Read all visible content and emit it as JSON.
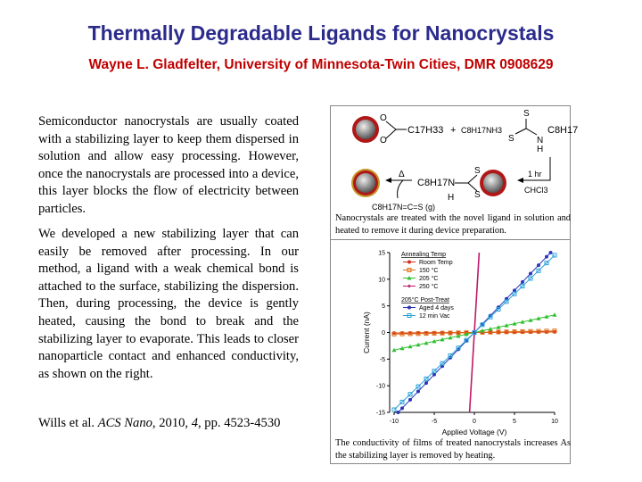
{
  "title": "Thermally Degradable Ligands for Nanocrystals",
  "subtitle": "Wayne L. Gladfelter, University of Minnesota-Twin Cities, DMR 0908629",
  "paragraphs": [
    "Semiconductor nanocrystals are usually coated with a stabilizing layer to keep them dispersed in solution and allow easy processing. However, once the nanocrystals are processed into a device, this layer blocks the flow of electricity between particles.",
    "We developed a new stabilizing layer that can easily be removed after processing. In our method, a ligand with a weak chemical bond is attached to the surface, stabilizing the dispersion. Then, during processing, the device is gently heated, causing the bond to break and the stabilizing layer to evaporate. This leads to closer nanoparticle contact and enhanced conductivity, as shown on the right."
  ],
  "citation": {
    "authors": "Wills et al. ",
    "journal": "ACS Nano",
    "year": ", 2010, ",
    "volume": "4",
    "pages": ", pp. 4523-4530"
  },
  "scheme": {
    "oleate": "C17H33",
    "plus": "+",
    "ammonium": "C8H17NH3",
    "dtc_r": "C8H17",
    "atom_S": "S",
    "atom_O": "O",
    "atom_N": "N",
    "atom_H": "H",
    "time": "1 hr",
    "solvent": "CHCl3",
    "heat": "Δ",
    "bound_r": "C8H17N",
    "byproduct": "C8H17N=C=S (g)"
  },
  "scheme_caption": "Nanocrystals are treated with the novel ligand in solution and heated to remove it during  device preparation.",
  "chart_caption": "The conductivity of films of treated nanocrystals increases As the  stabilizing layer is removed by heating.",
  "chart_data": {
    "type": "line",
    "xlabel": "Applied Voltage (V)",
    "ylabel": "Current (nA)",
    "xlim": [
      -10,
      10
    ],
    "ylim": [
      -15,
      15
    ],
    "xticks": [
      -10,
      -5,
      0,
      5,
      10
    ],
    "yticks": [
      -15,
      -10,
      -5,
      0,
      5,
      10,
      15
    ],
    "legend_position": "top-left",
    "legend_groups": [
      "Annealing Temp",
      "205°C Post-Treat"
    ],
    "series": [
      {
        "name": "Room Temp",
        "color": "#d2301e",
        "marker": "circle",
        "slope": 0.01,
        "x": [
          -10,
          -9,
          -8,
          -7,
          -6,
          -5,
          -4,
          -3,
          -2,
          -1,
          0,
          1,
          2,
          3,
          4,
          5,
          6,
          7,
          8,
          9,
          10
        ]
      },
      {
        "name": "150 °C",
        "color": "#e06a10",
        "marker": "square",
        "slope": 0.03,
        "x": [
          -10,
          -9,
          -8,
          -7,
          -6,
          -5,
          -4,
          -3,
          -2,
          -1,
          0,
          1,
          2,
          3,
          4,
          5,
          6,
          7,
          8,
          9,
          10
        ]
      },
      {
        "name": "205 °C",
        "color": "#2fc02f",
        "marker": "triangle",
        "slope": 0.33,
        "x": [
          -10,
          -9,
          -8,
          -7,
          -6,
          -5,
          -4,
          -3,
          -2,
          -1,
          0,
          1,
          2,
          3,
          4,
          5,
          6,
          7,
          8,
          9,
          10
        ]
      },
      {
        "name": "250 °C",
        "color": "#c0186a",
        "marker": "diamond",
        "slope": 25,
        "x": [
          -0.6,
          0,
          0.6
        ]
      },
      {
        "name": "Aged 4 days",
        "color": "#2a35b8",
        "marker": "circle",
        "slope": 1.58,
        "x": [
          -9.5,
          -9,
          -8,
          -7,
          -6,
          -5,
          -4,
          -3,
          -2,
          -1,
          0,
          1,
          2,
          3,
          4,
          5,
          6,
          7,
          8,
          9,
          9.5
        ]
      },
      {
        "name": "12 min Vac",
        "color": "#2aa0d8",
        "marker": "square",
        "slope": 1.45,
        "x": [
          -10,
          -9,
          -8,
          -7,
          -6,
          -5,
          -4,
          -3,
          -2,
          -1,
          0,
          1,
          2,
          3,
          4,
          5,
          6,
          7,
          8,
          9,
          10
        ]
      }
    ]
  }
}
